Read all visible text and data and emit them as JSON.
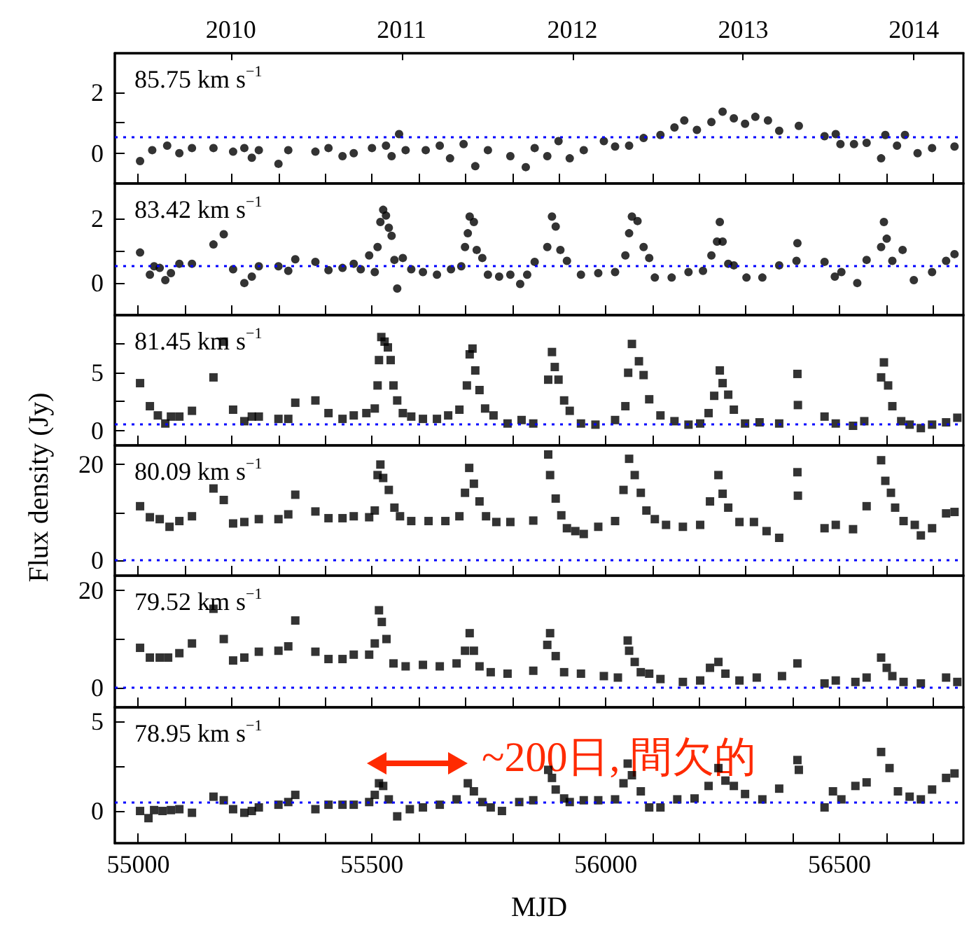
{
  "chart_data": [
    {
      "type": "scatter",
      "color": "#000000",
      "marker": "circle",
      "annotations": [
        "85.75 km s$^{−1}$"
      ],
      "tick_labels": "y",
      "xlim": [
        54950,
        56765
      ],
      "xticks": [
        55000,
        {
          "value": 55100,
          "label": null
        },
        {
          "value": 55200,
          "label": null
        },
        {
          "value": 55300,
          "label": null
        },
        {
          "value": 55400,
          "label": null
        },
        55500,
        {
          "value": 55600,
          "label": null
        },
        {
          "value": 55700,
          "label": null
        },
        {
          "value": 55800,
          "label": null
        },
        {
          "value": 55900,
          "label": null
        },
        56000,
        {
          "value": 56100,
          "label": null
        },
        {
          "value": 56200,
          "label": null
        },
        {
          "value": 56300,
          "label": null
        },
        {
          "value": 56400,
          "label": null
        },
        56500,
        {
          "value": 56600,
          "label": null
        },
        {
          "value": 56700,
          "label": null
        }
      ],
      "x2lim": [
        2009.32,
        2014.29
      ],
      "x2ticks": [
        2010,
        2011,
        2012,
        2013,
        2014
      ],
      "ylim": [
        -1,
        3.3
      ],
      "yticks": [
        0,
        {
          "value": 1,
          "label": null
        },
        2
      ],
      "ref_lines": [
        {
          "axis": "y",
          "value": 0.55,
          "color": "#0000ff",
          "line_style": "dotted"
        }
      ],
      "x": [
        55004,
        55030,
        55062,
        55088,
        55115,
        55161,
        55203,
        55227,
        55243,
        55258,
        55300,
        55321,
        55379,
        55407,
        55437,
        55461,
        55500,
        55530,
        55542,
        55558,
        55572,
        55615,
        55645,
        55667,
        55696,
        55721,
        55748,
        55796,
        55829,
        55848,
        55875,
        55899,
        55923,
        55953,
        55996,
        56020,
        56050,
        56081,
        56117,
        56147,
        56168,
        56195,
        56226,
        56250,
        56274,
        56298,
        56320,
        56347,
        56371,
        56413,
        56468,
        56492,
        56502,
        56531,
        56558,
        56589,
        56598,
        56623,
        56640,
        56667,
        56698,
        56746
      ],
      "values": [
        -0.26,
        0.1,
        0.25,
        0,
        0.17,
        0.17,
        0.05,
        0.17,
        -0.15,
        0.1,
        -0.35,
        0.1,
        0.05,
        0.17,
        -0.1,
        0,
        0.17,
        0.25,
        -0.1,
        0.63,
        0.1,
        0.1,
        0.25,
        -0.17,
        0.3,
        -0.43,
        0.1,
        -0.1,
        -0.46,
        0.17,
        -0.1,
        0.4,
        -0.17,
        0.1,
        0.4,
        0.22,
        0.25,
        0.5,
        0.6,
        0.85,
        1.08,
        0.77,
        1.03,
        1.37,
        1.15,
        0.97,
        1.2,
        1.08,
        0.74,
        0.9,
        0.56,
        0.63,
        0.3,
        0.3,
        0.34,
        -0.17,
        0.6,
        0.25,
        0.6,
        0,
        0.17,
        0.22
      ]
    },
    {
      "type": "scatter",
      "color": "#000000",
      "marker": "circle",
      "annotations": [
        "83.42 km s$^{−1}$"
      ],
      "tick_labels": "y",
      "xlim": [
        54950,
        56765
      ],
      "xticks": [
        55000,
        {
          "value": 55100,
          "label": null
        },
        {
          "value": 55200,
          "label": null
        },
        {
          "value": 55300,
          "label": null
        },
        {
          "value": 55400,
          "label": null
        },
        55500,
        {
          "value": 55600,
          "label": null
        },
        {
          "value": 55700,
          "label": null
        },
        {
          "value": 55800,
          "label": null
        },
        {
          "value": 55900,
          "label": null
        },
        56000,
        {
          "value": 56100,
          "label": null
        },
        {
          "value": 56200,
          "label": null
        },
        {
          "value": 56300,
          "label": null
        },
        {
          "value": 56400,
          "label": null
        },
        56500,
        {
          "value": 56600,
          "label": null
        },
        {
          "value": 56700,
          "label": null
        }
      ],
      "ylim": [
        -1,
        3.1
      ],
      "yticks": [
        0,
        {
          "value": 1,
          "label": null
        },
        2
      ],
      "ref_lines": [
        {
          "axis": "y",
          "value": 0.55,
          "color": "#0000ff",
          "line_style": "dotted"
        }
      ],
      "x": [
        55004,
        55025,
        55034,
        55046,
        55058,
        55070,
        55088,
        55115,
        55161,
        55183,
        55203,
        55227,
        55243,
        55258,
        55300,
        55321,
        55336,
        55379,
        55407,
        55437,
        55461,
        55476,
        55494,
        55506,
        55512,
        55518,
        55524,
        55530,
        55536,
        55542,
        55548,
        55554,
        55566,
        55584,
        55609,
        55639,
        55669,
        55691,
        55699,
        55705,
        55709,
        55718,
        55724,
        55736,
        55748,
        55772,
        55796,
        55817,
        55832,
        55848,
        55875,
        55885,
        55893,
        55903,
        55917,
        55947,
        55984,
        56020,
        56042,
        56050,
        56056,
        56068,
        56081,
        56093,
        56105,
        56141,
        56177,
        56208,
        56226,
        56238,
        56244,
        56250,
        56262,
        56274,
        56301,
        56335,
        56371,
        56408,
        56410,
        56468,
        56490,
        56504,
        56538,
        56558,
        56589,
        56595,
        56601,
        56613,
        56635,
        56659,
        56698,
        56728,
        56746
      ],
      "values": [
        0.95,
        0.26,
        0.52,
        0.47,
        0.09,
        0.31,
        0.6,
        0.6,
        1.2,
        1.52,
        0.43,
        0,
        0.2,
        0.52,
        0.52,
        0.38,
        0.74,
        0.66,
        0.4,
        0.47,
        0.6,
        0.43,
        0.86,
        0.34,
        1.12,
        1.9,
        2.28,
        2.1,
        1.72,
        1.47,
        0.72,
        -0.17,
        0.78,
        0.43,
        0.34,
        0.26,
        0.43,
        0.52,
        1.12,
        1.55,
        2.07,
        1.9,
        1.03,
        0.78,
        0.26,
        0.2,
        0.26,
        -0.03,
        0.26,
        0.66,
        1.12,
        2.07,
        1.76,
        1.03,
        0.69,
        0.26,
        0.31,
        0.34,
        0.86,
        1.55,
        2.07,
        1.93,
        1.12,
        0.78,
        0.17,
        0.17,
        0.34,
        0.38,
        0.86,
        1.29,
        1.9,
        1.29,
        0.6,
        0.55,
        0.17,
        0.17,
        0.55,
        0.69,
        1.24,
        0.66,
        0.2,
        0.34,
        0,
        0.72,
        1.12,
        1.9,
        1.38,
        0.69,
        1.03,
        0.09,
        0.34,
        0.69,
        0.9
      ]
    },
    {
      "type": "scatter",
      "color": "#000000",
      "marker": "square",
      "annotations": [
        "81.45 km s$^{−1}$"
      ],
      "tick_labels": "y",
      "xlim": [
        54950,
        56765
      ],
      "xticks": [
        55000,
        {
          "value": 55100,
          "label": null
        },
        {
          "value": 55200,
          "label": null
        },
        {
          "value": 55300,
          "label": null
        },
        {
          "value": 55400,
          "label": null
        },
        55500,
        {
          "value": 55600,
          "label": null
        },
        {
          "value": 55700,
          "label": null
        },
        {
          "value": 55800,
          "label": null
        },
        {
          "value": 55900,
          "label": null
        },
        56000,
        {
          "value": 56100,
          "label": null
        },
        {
          "value": 56200,
          "label": null
        },
        {
          "value": 56300,
          "label": null
        },
        {
          "value": 56400,
          "label": null
        },
        56500,
        {
          "value": 56600,
          "label": null
        },
        {
          "value": 56700,
          "label": null
        }
      ],
      "ylim": [
        -1.3,
        10
      ],
      "yticks": [
        0,
        {
          "value": 2.5,
          "label": null
        },
        5,
        {
          "value": 7.5,
          "label": null
        }
      ],
      "ref_lines": [
        {
          "axis": "y",
          "value": 0.5,
          "color": "#0000ff",
          "line_style": "dotted"
        }
      ],
      "x": [
        55004,
        55025,
        55042,
        55058,
        55070,
        55088,
        55115,
        55161,
        55183,
        55203,
        55227,
        55243,
        55258,
        55300,
        55321,
        55336,
        55379,
        55407,
        55437,
        55461,
        55488,
        55506,
        55512,
        55515,
        55520,
        55527,
        55534,
        55540,
        55546,
        55554,
        55566,
        55584,
        55609,
        55639,
        55663,
        55687,
        55703,
        55709,
        55715,
        55721,
        55730,
        55742,
        55760,
        55790,
        55820,
        55845,
        55877,
        55885,
        55891,
        55899,
        55911,
        55923,
        55947,
        55978,
        56020,
        56042,
        56048,
        56056,
        56071,
        56081,
        56093,
        56117,
        56147,
        56177,
        56202,
        56220,
        56232,
        56244,
        56250,
        56262,
        56274,
        56298,
        56329,
        56371,
        56410,
        56411,
        56468,
        56492,
        56529,
        56553,
        56589,
        56595,
        56604,
        56613,
        56632,
        56650,
        56674,
        56698,
        56728,
        56752
      ],
      "values": [
        4.1,
        2.1,
        1.3,
        0.6,
        1.2,
        1.2,
        1.7,
        4.6,
        7.7,
        1.8,
        0.8,
        1.2,
        1.2,
        1,
        1,
        2.4,
        2.6,
        1.5,
        1,
        1.3,
        1.5,
        1.9,
        3.9,
        6.1,
        8.1,
        7.7,
        7.2,
        6.1,
        3.9,
        2.6,
        1.5,
        1.2,
        1,
        1,
        1.3,
        1.8,
        3.9,
        6.6,
        7.1,
        5.2,
        3.5,
        1.9,
        1.3,
        0.6,
        0.9,
        0.6,
        4.4,
        6.8,
        5.5,
        4.4,
        2.6,
        1.7,
        0.6,
        0.5,
        0.9,
        2.1,
        5,
        7.5,
        6,
        4.8,
        2.7,
        1.3,
        0.8,
        0.5,
        0.6,
        1.5,
        3,
        5.2,
        4.1,
        3.1,
        1.8,
        0.6,
        0.7,
        0.6,
        4.9,
        2.2,
        1.2,
        0.6,
        0.4,
        0.8,
        4.6,
        5.9,
        3.9,
        2.1,
        0.8,
        0.5,
        0.2,
        0.5,
        0.7,
        1.1
      ]
    },
    {
      "type": "scatter",
      "color": "#000000",
      "marker": "square",
      "annotations": [
        "80.09 km s$^{−1}$"
      ],
      "ylabel": "Flux density (Jy)",
      "tick_labels": "y",
      "xlim": [
        54950,
        56765
      ],
      "xticks": [
        55000,
        {
          "value": 55100,
          "label": null
        },
        {
          "value": 55200,
          "label": null
        },
        {
          "value": 55300,
          "label": null
        },
        {
          "value": 55400,
          "label": null
        },
        55500,
        {
          "value": 55600,
          "label": null
        },
        {
          "value": 55700,
          "label": null
        },
        {
          "value": 55800,
          "label": null
        },
        {
          "value": 55900,
          "label": null
        },
        56000,
        {
          "value": 56100,
          "label": null
        },
        {
          "value": 56200,
          "label": null
        },
        {
          "value": 56300,
          "label": null
        },
        {
          "value": 56400,
          "label": null
        },
        56500,
        {
          "value": 56600,
          "label": null
        },
        {
          "value": 56700,
          "label": null
        }
      ],
      "ylim": [
        -3.2,
        24
      ],
      "yticks": [
        0,
        {
          "value": 10,
          "label": null
        },
        20
      ],
      "ref_lines": [
        {
          "axis": "y",
          "value": 0,
          "color": "#0000ff",
          "line_style": "dotted"
        }
      ],
      "x": [
        55004,
        55025,
        55046,
        55067,
        55088,
        55115,
        55161,
        55183,
        55203,
        55227,
        55258,
        55300,
        55321,
        55336,
        55379,
        55407,
        55437,
        55461,
        55494,
        55506,
        55512,
        55518,
        55524,
        55536,
        55548,
        55560,
        55584,
        55621,
        55657,
        55687,
        55699,
        55708,
        55718,
        55730,
        55744,
        55766,
        55796,
        55845,
        55877,
        55881,
        55893,
        55905,
        55917,
        55935,
        55953,
        55984,
        56020,
        56038,
        56050,
        56062,
        56075,
        56087,
        56105,
        56129,
        56165,
        56202,
        56223,
        56241,
        56250,
        56262,
        56286,
        56317,
        56344,
        56371,
        56410,
        56411,
        56468,
        56492,
        56529,
        56558,
        56589,
        56598,
        56610,
        56619,
        56637,
        56661,
        56674,
        56698,
        56728,
        56746
      ],
      "values": [
        11.3,
        9,
        8.6,
        7,
        8.2,
        9.2,
        15,
        12.6,
        7.7,
        8,
        8.6,
        8.6,
        9.6,
        13.7,
        10.2,
        8.8,
        8.8,
        9.2,
        9,
        10.4,
        17.8,
        20,
        17.2,
        14.7,
        11,
        9.2,
        8.2,
        8.2,
        8.2,
        9.2,
        14.1,
        19.3,
        16,
        12.3,
        9.2,
        8,
        8,
        8.3,
        22.1,
        17.8,
        12.9,
        9.4,
        6.7,
        6.1,
        5.5,
        7,
        8.2,
        14.7,
        21.2,
        17.8,
        14.1,
        10.4,
        8.6,
        7.4,
        7,
        7.4,
        12.3,
        17.8,
        13.9,
        11,
        8,
        8,
        6.1,
        4.7,
        18.4,
        13.5,
        6.7,
        7.4,
        6.5,
        11.3,
        20.9,
        16.6,
        14.1,
        11,
        8.2,
        7.4,
        5.2,
        6.7,
        9.8,
        10.1
      ]
    },
    {
      "type": "scatter",
      "color": "#000000",
      "marker": "square",
      "annotations": [
        "79.52 km s$^{−1}$"
      ],
      "tick_labels": "y",
      "xlim": [
        54950,
        56765
      ],
      "xticks": [
        55000,
        {
          "value": 55100,
          "label": null
        },
        {
          "value": 55200,
          "label": null
        },
        {
          "value": 55300,
          "label": null
        },
        {
          "value": 55400,
          "label": null
        },
        55500,
        {
          "value": 55600,
          "label": null
        },
        {
          "value": 55700,
          "label": null
        },
        {
          "value": 55800,
          "label": null
        },
        {
          "value": 55900,
          "label": null
        },
        56000,
        {
          "value": 56100,
          "label": null
        },
        {
          "value": 56200,
          "label": null
        },
        {
          "value": 56300,
          "label": null
        },
        {
          "value": 56400,
          "label": null
        },
        56500,
        {
          "value": 56600,
          "label": null
        },
        {
          "value": 56700,
          "label": null
        }
      ],
      "ylim": [
        -4,
        23
      ],
      "yticks": [
        0,
        {
          "value": 10,
          "label": null
        },
        20
      ],
      "ref_lines": [
        {
          "axis": "y",
          "value": 0,
          "color": "#0000ff",
          "line_style": "dotted"
        }
      ],
      "x": [
        55004,
        55025,
        55046,
        55064,
        55088,
        55115,
        55161,
        55183,
        55203,
        55227,
        55258,
        55300,
        55321,
        55336,
        55379,
        55407,
        55437,
        55461,
        55494,
        55506,
        55515,
        55521,
        55531,
        55546,
        55572,
        55609,
        55645,
        55681,
        55699,
        55709,
        55718,
        55730,
        55754,
        55790,
        55845,
        55875,
        55881,
        55893,
        55911,
        55947,
        55996,
        56026,
        56047,
        56050,
        56062,
        56075,
        56093,
        56117,
        56165,
        56202,
        56223,
        56241,
        56256,
        56286,
        56323,
        56377,
        56410,
        56468,
        56492,
        56534,
        56558,
        56589,
        56601,
        56613,
        56637,
        56674,
        56728,
        56752
      ],
      "values": [
        8.2,
        6.2,
        6.2,
        6.2,
        7.1,
        9.1,
        16.2,
        10,
        5.6,
        6.2,
        7.4,
        7.6,
        8.5,
        13.8,
        7.4,
        5.9,
        5.9,
        6.8,
        6.8,
        9.1,
        15.9,
        13.5,
        10,
        5,
        4.4,
        4.7,
        4.4,
        5,
        7.6,
        11.2,
        7.6,
        4.4,
        3.2,
        2.9,
        3.5,
        8.8,
        11.2,
        6.5,
        3.2,
        2.9,
        2.4,
        2.1,
        9.7,
        7.6,
        5.3,
        3.2,
        2.9,
        1.8,
        1.2,
        1.5,
        4.1,
        5.3,
        2.9,
        1.5,
        2.1,
        2.4,
        5,
        0.9,
        1.5,
        1.2,
        2.1,
        6.2,
        4.1,
        2.4,
        1.2,
        0.9,
        2.1,
        1.2
      ]
    },
    {
      "type": "scatter",
      "color": "#000000",
      "marker": "square",
      "annotations": [
        "78.95 km s$^{−1}$",
        "~200日, 間欠的"
      ],
      "xlabel": "MJD",
      "xlim": [
        54950,
        56765
      ],
      "xticks": [
        55000,
        {
          "value": 55100,
          "label": null
        },
        {
          "value": 55200,
          "label": null
        },
        {
          "value": 55300,
          "label": null
        },
        {
          "value": 55400,
          "label": null
        },
        55500,
        {
          "value": 55600,
          "label": null
        },
        {
          "value": 55700,
          "label": null
        },
        {
          "value": 55800,
          "label": null
        },
        {
          "value": 55900,
          "label": null
        },
        56000,
        {
          "value": 56100,
          "label": null
        },
        {
          "value": 56200,
          "label": null
        },
        {
          "value": 56300,
          "label": null
        },
        {
          "value": 56400,
          "label": null
        },
        56500,
        {
          "value": 56600,
          "label": null
        },
        {
          "value": 56700,
          "label": null
        }
      ],
      "ylim": [
        -1.8,
        5.8
      ],
      "yticks": [
        0,
        {
          "value": 2.5,
          "label": null
        },
        5
      ],
      "ref_lines": [
        {
          "axis": "y",
          "value": 0.5,
          "color": "#0000ff",
          "line_style": "dotted"
        }
      ],
      "x": [
        55004,
        55022,
        55034,
        55052,
        55070,
        55088,
        55115,
        55161,
        55183,
        55203,
        55227,
        55243,
        55258,
        55300,
        55321,
        55336,
        55379,
        55407,
        55437,
        55461,
        55494,
        55506,
        55515,
        55524,
        55536,
        55554,
        55581,
        55609,
        55645,
        55681,
        55705,
        55718,
        55736,
        55754,
        55778,
        55815,
        55845,
        55877,
        55885,
        55893,
        55911,
        55923,
        55953,
        55984,
        56020,
        56038,
        56047,
        56056,
        56075,
        56093,
        56117,
        56153,
        56190,
        56220,
        56241,
        56256,
        56274,
        56298,
        56335,
        56371,
        56410,
        56413,
        56468,
        56486,
        56504,
        56534,
        56558,
        56589,
        56607,
        56625,
        56650,
        56674,
        56698,
        56728,
        56746
      ],
      "values": [
        0,
        -0.4,
        0.05,
        0,
        0.05,
        0.1,
        -0.1,
        0.8,
        0.6,
        0.1,
        -0.1,
        0,
        0.2,
        0.35,
        0.5,
        0.9,
        0.1,
        0.35,
        0.35,
        0.35,
        0.5,
        0.9,
        1.55,
        1.4,
        0.65,
        -0.3,
        0.1,
        0.2,
        0.35,
        0.65,
        1.55,
        1.1,
        0.5,
        0.2,
        0,
        0.5,
        0.6,
        2.3,
        1.85,
        1.2,
        0.7,
        0.5,
        0.6,
        0.6,
        0.65,
        1.55,
        2.65,
        2,
        1.1,
        0.2,
        0.2,
        0.65,
        0.7,
        1.4,
        2.4,
        1.7,
        1.4,
        0.95,
        0.65,
        1.25,
        2.85,
        2.3,
        0.2,
        1.1,
        0.65,
        1.4,
        1.6,
        3.3,
        2.4,
        1.1,
        0.8,
        0.65,
        1.2,
        1.85,
        2.1
      ]
    }
  ]
}
